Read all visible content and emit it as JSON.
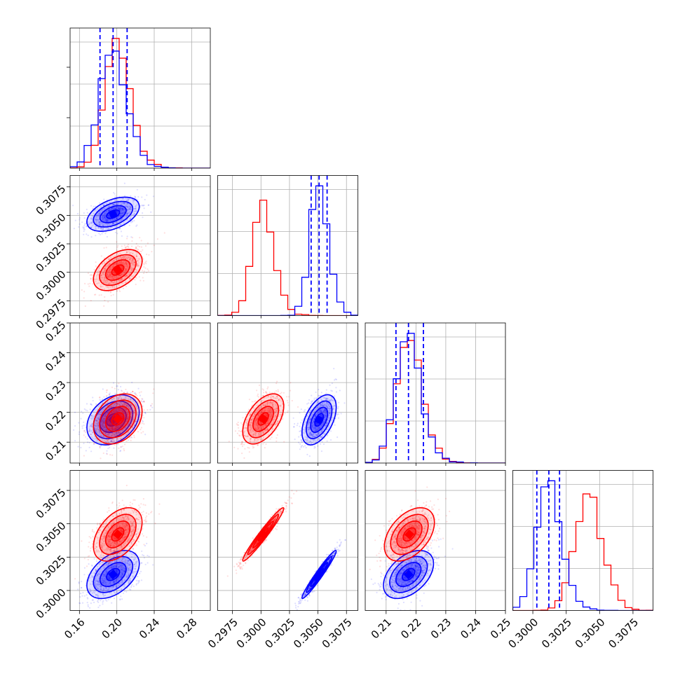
{
  "chart_data": {
    "type": "corner",
    "grid": true,
    "series": [
      {
        "name": "",
        "color": "#0000ff",
        "means": [
          0.196,
          0.3051,
          0.2175,
          0.3012
        ],
        "sds": [
          0.014,
          0.00075,
          0.0042,
          0.0009
        ]
      },
      {
        "name": "",
        "color": "#ff0000",
        "means": [
          0.201,
          0.3002,
          0.2178,
          0.3042
        ],
        "sds": [
          0.013,
          0.0009,
          0.0042,
          0.001
        ]
      }
    ],
    "correlations": {
      "0-1": 0.45,
      "0-2": 0.3,
      "0-3": 0.45,
      "1-2": 0.5,
      "1-3": 0.97,
      "2-3": 0.45
    },
    "axis_ranges": [
      [
        0.15,
        0.3
      ],
      [
        0.2962,
        0.3085
      ],
      [
        0.203,
        0.25
      ],
      [
        0.2985,
        0.309
      ]
    ],
    "row_ranges": {
      "1": [
        0.2962,
        0.3085
      ],
      "2": [
        0.203,
        0.25
      ],
      "3": [
        0.2985,
        0.309
      ]
    },
    "quantile_lines": [
      [
        0.182,
        0.196,
        0.211
      ],
      [
        0.3044,
        0.3051,
        0.3058
      ],
      [
        0.2133,
        0.2175,
        0.2225
      ],
      [
        0.3003,
        0.3012,
        0.302
      ]
    ],
    "x_tick_labels": [
      [
        "0.16",
        "0.20",
        "0.24",
        "0.28"
      ],
      [
        "0.2975",
        "0.3000",
        "0.3025",
        "0.3050",
        "0.3075"
      ],
      [
        "0.21",
        "0.22",
        "0.23",
        "0.24",
        "0.25"
      ],
      [
        "0.3000",
        "0.3025",
        "0.3050",
        "0.3075"
      ]
    ],
    "y_tick_labels": {
      "1": [
        "0.2975",
        "0.3000",
        "0.3025",
        "0.3050",
        "0.3075"
      ],
      "2": [
        "0.21",
        "0.22",
        "0.23",
        "0.24",
        "0.25"
      ],
      "3": [
        "0.3000",
        "0.3025",
        "0.3050",
        "0.3075"
      ]
    }
  }
}
